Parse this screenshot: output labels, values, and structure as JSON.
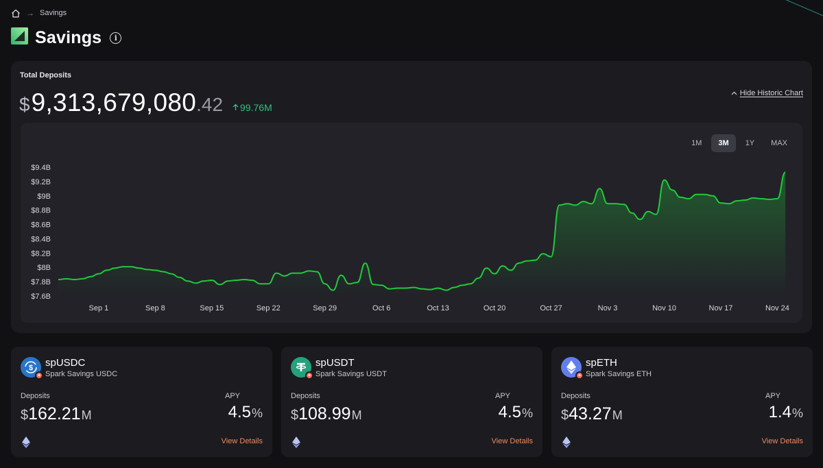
{
  "breadcrumb": {
    "home_icon": "home-icon",
    "current": "Savings"
  },
  "page": {
    "title": "Savings"
  },
  "total_deposits": {
    "label": "Total Deposits",
    "currency": "$",
    "value_int": "9,313,679,080",
    "value_dec": ".42",
    "change": "99.76M",
    "change_color": "#2ec27e"
  },
  "hide_chart_label": "Hide Historic Chart",
  "range_tabs": [
    {
      "label": "1M",
      "active": false
    },
    {
      "label": "3M",
      "active": true
    },
    {
      "label": "1Y",
      "active": false
    },
    {
      "label": "MAX",
      "active": false
    }
  ],
  "chart_data": {
    "type": "area",
    "title": "",
    "xlabel": "",
    "ylabel": "",
    "line_color": "#22c93b",
    "y_ticks": [
      "$9.4B",
      "$9.2B",
      "$9B",
      "$8.8B",
      "$8.6B",
      "$8.4B",
      "$8.2B",
      "$8B",
      "$7.8B",
      "$7.6B"
    ],
    "x_ticks": [
      "Sep 1",
      "Sep 8",
      "Sep 15",
      "Sep 22",
      "Sep 29",
      "Oct 6",
      "Oct 13",
      "Oct 20",
      "Oct 27",
      "Nov 3",
      "Nov 10",
      "Nov 17",
      "Nov 24"
    ],
    "x_domain": [
      "Aug 27",
      "Nov 26"
    ],
    "ylim": [
      7.6,
      9.4
    ],
    "grid": false,
    "series": [
      {
        "values": [
          [
            "Aug 27",
            7.83
          ],
          [
            "Aug 28",
            7.84
          ],
          [
            "Aug 29",
            7.83
          ],
          [
            "Aug 30",
            7.84
          ],
          [
            "Aug 31",
            7.87
          ],
          [
            "Sep 1",
            7.91
          ],
          [
            "Sep 2",
            7.96
          ],
          [
            "Sep 3",
            7.99
          ],
          [
            "Sep 4",
            8.01
          ],
          [
            "Sep 5",
            8.01
          ],
          [
            "Sep 6",
            7.99
          ],
          [
            "Sep 7",
            7.97
          ],
          [
            "Sep 8",
            7.96
          ],
          [
            "Sep 9",
            7.94
          ],
          [
            "Sep 10",
            7.91
          ],
          [
            "Sep 11",
            7.86
          ],
          [
            "Sep 12",
            7.81
          ],
          [
            "Sep 13",
            7.78
          ],
          [
            "Sep 14",
            7.81
          ],
          [
            "Sep 15",
            7.82
          ],
          [
            "Sep 16",
            7.76
          ],
          [
            "Sep 17",
            7.81
          ],
          [
            "Sep 18",
            7.82
          ],
          [
            "Sep 19",
            7.83
          ],
          [
            "Sep 20",
            7.82
          ],
          [
            "Sep 21",
            7.77
          ],
          [
            "Sep 22",
            7.77
          ],
          [
            "Sep 23",
            7.92
          ],
          [
            "Sep 24",
            7.88
          ],
          [
            "Sep 25",
            7.92
          ],
          [
            "Sep 26",
            7.92
          ],
          [
            "Sep 27",
            7.95
          ],
          [
            "Sep 28",
            7.94
          ],
          [
            "Sep 29",
            7.77
          ],
          [
            "Sep 30",
            7.68
          ],
          [
            "Oct 1",
            7.89
          ],
          [
            "Oct 2",
            7.77
          ],
          [
            "Oct 3",
            7.79
          ],
          [
            "Oct 4",
            8.06
          ],
          [
            "Oct 5",
            7.76
          ],
          [
            "Oct 6",
            7.75
          ],
          [
            "Oct 7",
            7.7
          ],
          [
            "Oct 8",
            7.71
          ],
          [
            "Oct 9",
            7.71
          ],
          [
            "Oct 10",
            7.72
          ],
          [
            "Oct 11",
            7.7
          ],
          [
            "Oct 12",
            7.69
          ],
          [
            "Oct 13",
            7.71
          ],
          [
            "Oct 14",
            7.68
          ],
          [
            "Oct 15",
            7.72
          ],
          [
            "Oct 16",
            7.75
          ],
          [
            "Oct 17",
            7.77
          ],
          [
            "Oct 18",
            7.85
          ],
          [
            "Oct 19",
            7.99
          ],
          [
            "Oct 20",
            7.91
          ],
          [
            "Oct 21",
            8.02
          ],
          [
            "Oct 22",
            7.96
          ],
          [
            "Oct 23",
            8.06
          ],
          [
            "Oct 24",
            8.09
          ],
          [
            "Oct 25",
            8.1
          ],
          [
            "Oct 26",
            8.19
          ],
          [
            "Oct 27",
            8.15
          ],
          [
            "Oct 28",
            8.87
          ],
          [
            "Oct 29",
            8.89
          ],
          [
            "Oct 30",
            8.87
          ],
          [
            "Oct 31",
            8.92
          ],
          [
            "Nov 1",
            8.89
          ],
          [
            "Nov 2",
            9.1
          ],
          [
            "Nov 3",
            8.89
          ],
          [
            "Nov 4",
            8.89
          ],
          [
            "Nov 5",
            8.88
          ],
          [
            "Nov 6",
            8.76
          ],
          [
            "Nov 7",
            8.67
          ],
          [
            "Nov 8",
            8.78
          ],
          [
            "Nov 9",
            8.74
          ],
          [
            "Nov 10",
            9.22
          ],
          [
            "Nov 11",
            9.08
          ],
          [
            "Nov 12",
            8.98
          ],
          [
            "Nov 13",
            8.96
          ],
          [
            "Nov 14",
            9.02
          ],
          [
            "Nov 15",
            9.02
          ],
          [
            "Nov 16",
            9.0
          ],
          [
            "Nov 17",
            8.9
          ],
          [
            "Nov 18",
            8.89
          ],
          [
            "Nov 19",
            8.93
          ],
          [
            "Nov 20",
            8.94
          ],
          [
            "Nov 21",
            8.97
          ],
          [
            "Nov 22",
            8.96
          ],
          [
            "Nov 23",
            8.95
          ],
          [
            "Nov 24",
            8.96
          ],
          [
            "Nov 25",
            9.33
          ]
        ]
      }
    ]
  },
  "cards": [
    {
      "name": "spUSDC",
      "subname": "Spark Savings USDC",
      "icon": "usdc-icon",
      "color": "#2775ca",
      "deposits_label": "Deposits",
      "currency": "$",
      "deposits_value": "162.21",
      "deposits_unit": "M",
      "apy_label": "APY",
      "apy_value": "4.5",
      "apy_unit": "%",
      "chain_icon": "ethereum-icon",
      "link": "View Details"
    },
    {
      "name": "spUSDT",
      "subname": "Spark Savings USDT",
      "icon": "usdt-icon",
      "color": "#26a17b",
      "deposits_label": "Deposits",
      "currency": "$",
      "deposits_value": "108.99",
      "deposits_unit": "M",
      "apy_label": "APY",
      "apy_value": "4.5",
      "apy_unit": "%",
      "chain_icon": "ethereum-icon",
      "link": "View Details"
    },
    {
      "name": "spETH",
      "subname": "Spark Savings ETH",
      "icon": "eth-icon",
      "color": "#627eea",
      "deposits_label": "Deposits",
      "currency": "$",
      "deposits_value": "43.27",
      "deposits_unit": "M",
      "apy_label": "APY",
      "apy_value": "1.4",
      "apy_unit": "%",
      "chain_icon": "ethereum-icon",
      "link": "View Details"
    }
  ]
}
